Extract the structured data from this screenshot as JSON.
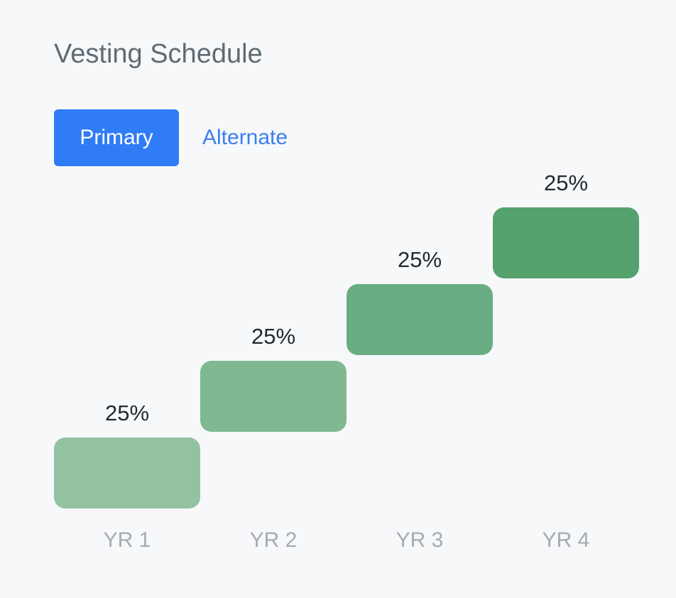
{
  "header": {
    "title": "Vesting Schedule"
  },
  "tabs": [
    {
      "label": "Primary",
      "active": true
    },
    {
      "label": "Alternate",
      "active": false
    }
  ],
  "colors": {
    "primary_tab_bg": "#2f7cf6",
    "alternate_tab_text": "#3a7ff0",
    "bar_colors": [
      "#92c2a2",
      "#80b892",
      "#68ae82",
      "#55a26e"
    ]
  },
  "chart_data": {
    "type": "bar",
    "categories": [
      "YR 1",
      "YR 2",
      "YR 3",
      "YR 4"
    ],
    "values": [
      25,
      25,
      25,
      25
    ],
    "data_labels": [
      "25%",
      "25%",
      "25%",
      "25%"
    ],
    "cumulative": true,
    "ylim": [
      0,
      100
    ],
    "grid": false,
    "title": "",
    "xlabel": "",
    "ylabel": ""
  }
}
